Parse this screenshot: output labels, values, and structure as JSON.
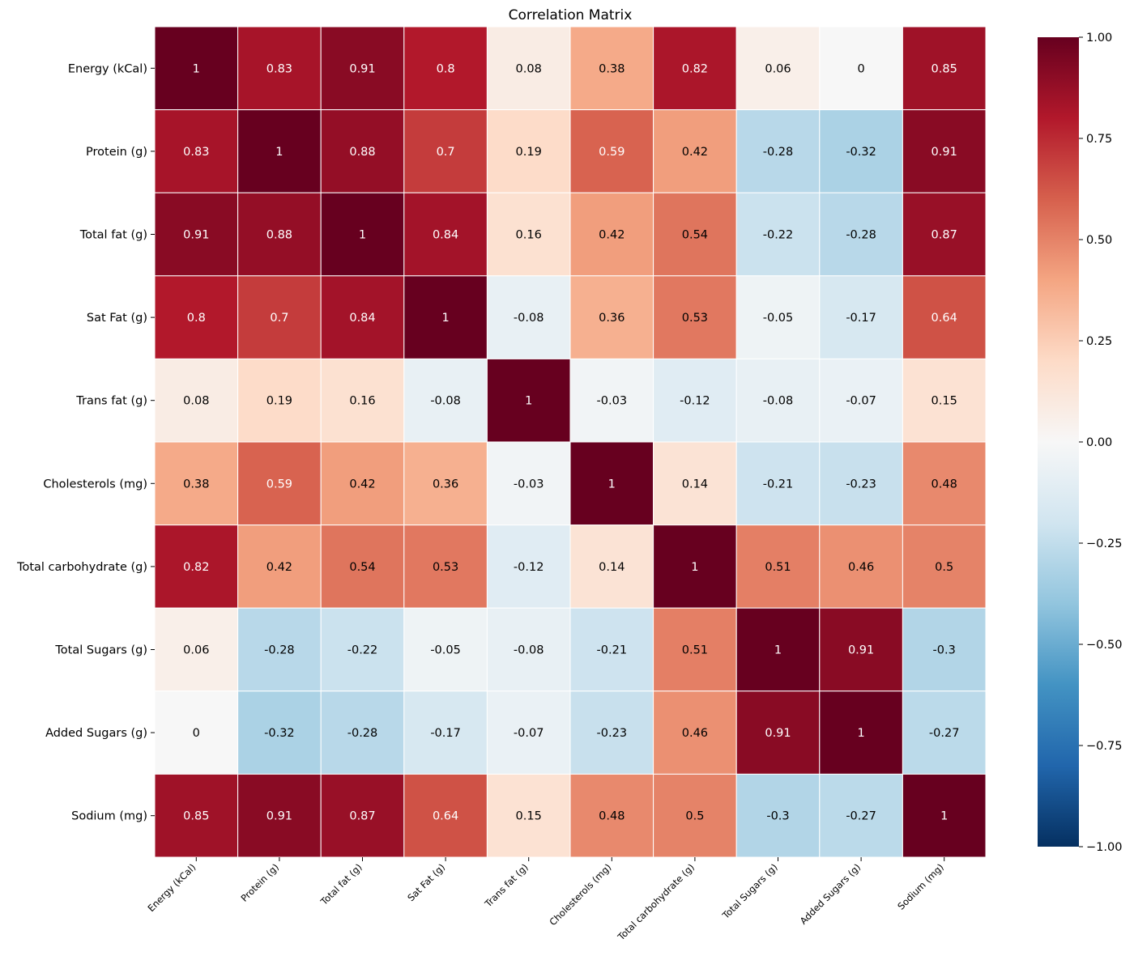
{
  "chart_data": {
    "type": "heatmap",
    "title": "Correlation Matrix",
    "labels": [
      "Energy (kCal)",
      "Protein (g)",
      "Total fat (g)",
      "Sat Fat (g)",
      "Trans fat (g)",
      "Cholesterols (mg)",
      "Total carbohydrate (g)",
      "Total Sugars (g)",
      "Added Sugars (g)",
      "Sodium (mg)"
    ],
    "values": [
      [
        1,
        0.83,
        0.91,
        0.8,
        0.08,
        0.38,
        0.82,
        0.06,
        0,
        0.85
      ],
      [
        0.83,
        1,
        0.88,
        0.7,
        0.19,
        0.59,
        0.42,
        -0.28,
        -0.32,
        0.91
      ],
      [
        0.91,
        0.88,
        1,
        0.84,
        0.16,
        0.42,
        0.54,
        -0.22,
        -0.28,
        0.87
      ],
      [
        0.8,
        0.7,
        0.84,
        1,
        -0.08,
        0.36,
        0.53,
        -0.05,
        -0.17,
        0.64
      ],
      [
        0.08,
        0.19,
        0.16,
        -0.08,
        1,
        -0.03,
        -0.12,
        -0.08,
        -0.07,
        0.15
      ],
      [
        0.38,
        0.59,
        0.42,
        0.36,
        -0.03,
        1,
        0.14,
        -0.21,
        -0.23,
        0.48
      ],
      [
        0.82,
        0.42,
        0.54,
        0.53,
        -0.12,
        0.14,
        1,
        0.51,
        0.46,
        0.5
      ],
      [
        0.06,
        -0.28,
        -0.22,
        -0.05,
        -0.08,
        -0.21,
        0.51,
        1,
        0.91,
        -0.3
      ],
      [
        0,
        -0.32,
        -0.28,
        -0.17,
        -0.07,
        -0.23,
        0.46,
        0.91,
        1,
        -0.27
      ],
      [
        0.85,
        0.91,
        0.87,
        0.64,
        0.15,
        0.48,
        0.5,
        -0.3,
        -0.27,
        1
      ]
    ],
    "colorbar": {
      "range": [
        -1,
        1
      ],
      "ticks": [
        "1.00",
        "0.75",
        "0.50",
        "0.25",
        "0.00",
        "−0.25",
        "−0.50",
        "−0.75",
        "−1.00"
      ],
      "tick_values": [
        1,
        0.75,
        0.5,
        0.25,
        0,
        -0.25,
        -0.5,
        -0.75,
        -1
      ]
    },
    "colormap": "RdBu_r",
    "colors": {
      "stops": [
        "#053061",
        "#2166ac",
        "#4393c3",
        "#92c5de",
        "#d1e5f0",
        "#f7f7f7",
        "#fddbc7",
        "#f4a582",
        "#d6604d",
        "#b2182b",
        "#67001f"
      ],
      "grid_line": "#ffffff"
    }
  }
}
